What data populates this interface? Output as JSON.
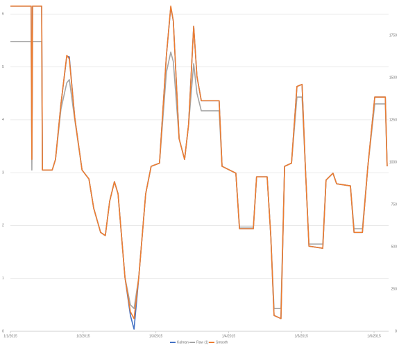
{
  "chart_data": {
    "type": "line",
    "x": [
      0,
      5.7,
      5.9,
      6.1,
      8.6,
      8.8,
      11.5,
      12.4,
      13.9,
      15.5,
      16.2,
      17.7,
      19.7,
      21.6,
      22.9,
      24.8,
      26.1,
      27.3,
      28.6,
      29.6,
      31.5,
      33.0,
      34.0,
      35.3,
      37.2,
      38.7,
      41.0,
      42.9,
      44.1,
      44.8,
      46.4,
      47.9,
      49.0,
      50.4,
      51.3,
      52.5,
      57.4,
      58.2,
      62.0,
      63.0,
      66.8,
      67.7,
      70.6,
      71.6,
      72.5,
      74.4,
      75.4,
      77.3,
      78.8,
      80.2,
      81.1,
      82.1,
      85.9,
      86.8,
      88.7,
      89.7,
      93.5,
      94.5,
      96.8,
      98.3,
      100.2,
      103.1,
      103.6
    ],
    "series": [
      {
        "name": "Kalman",
        "color": "#4472c4",
        "values": [
          6.15,
          6.15,
          3.25,
          6.15,
          6.15,
          3.05,
          3.05,
          3.25,
          4.3,
          5.2,
          5.19,
          4.04,
          3.05,
          2.88,
          2.33,
          1.87,
          1.81,
          2.46,
          2.83,
          2.6,
          1.02,
          0.3,
          0.04,
          1.02,
          2.6,
          3.12,
          3.18,
          5.22,
          6.13,
          5.87,
          3.64,
          3.25,
          3.91,
          5.77,
          4.82,
          4.36,
          4.36,
          3.12,
          2.99,
          1.94,
          1.94,
          2.92,
          2.92,
          1.81,
          0.3,
          0.24,
          3.12,
          3.18,
          4.63,
          4.67,
          3.12,
          1.61,
          1.57,
          2.86,
          2.99,
          2.79,
          2.75,
          1.87,
          1.87,
          3.12,
          4.43,
          4.43,
          3.12
        ]
      },
      {
        "name": "Raw (1)",
        "color": "#a5a5a5",
        "values": [
          5.48,
          5.48,
          3.05,
          5.48,
          5.48,
          3.05,
          3.05,
          3.25,
          4.2,
          4.7,
          4.76,
          4.0,
          3.05,
          2.88,
          2.33,
          1.87,
          1.81,
          2.46,
          2.83,
          2.6,
          1.02,
          0.5,
          0.43,
          1.02,
          2.6,
          3.12,
          3.18,
          4.9,
          5.28,
          5.1,
          3.64,
          3.25,
          3.91,
          5.06,
          4.5,
          4.17,
          4.17,
          3.12,
          2.99,
          1.97,
          1.97,
          2.92,
          2.92,
          1.81,
          0.43,
          0.43,
          3.12,
          3.18,
          4.43,
          4.43,
          3.12,
          1.65,
          1.65,
          2.86,
          2.99,
          2.79,
          2.75,
          1.94,
          1.94,
          3.12,
          4.3,
          4.3,
          3.12
        ]
      },
      {
        "name": "Smooth",
        "color": "#ed7d31",
        "values": [
          6.15,
          6.15,
          3.25,
          6.15,
          6.15,
          3.05,
          3.05,
          3.25,
          4.3,
          5.22,
          5.15,
          4.04,
          3.05,
          2.88,
          2.33,
          1.87,
          1.81,
          2.46,
          2.83,
          2.6,
          1.02,
          0.37,
          0.24,
          1.02,
          2.6,
          3.12,
          3.18,
          5.22,
          6.15,
          5.87,
          3.64,
          3.25,
          3.91,
          5.77,
          4.82,
          4.36,
          4.36,
          3.12,
          2.99,
          1.94,
          1.94,
          2.92,
          2.92,
          1.81,
          0.3,
          0.24,
          3.12,
          3.18,
          4.63,
          4.67,
          3.12,
          1.61,
          1.57,
          2.86,
          2.99,
          2.79,
          2.75,
          1.87,
          1.87,
          3.12,
          4.43,
          4.43,
          3.12
        ]
      }
    ],
    "xlim": [
      0,
      104
    ],
    "xticks": [
      {
        "value": 0,
        "label": "1/1/2015"
      },
      {
        "value": 20,
        "label": "1/2/2015"
      },
      {
        "value": 40,
        "label": "1/3/2015"
      },
      {
        "value": 60,
        "label": "1/4/2015"
      },
      {
        "value": 80,
        "label": "1/5/2015"
      },
      {
        "value": 100,
        "label": "1/6/2015"
      }
    ],
    "ylim": [
      0,
      6.2
    ],
    "yticks": [
      0,
      1,
      2,
      3,
      4,
      5,
      6
    ],
    "y2lim": [
      0,
      1938.5
    ],
    "y2ticks": [
      0,
      250,
      500,
      750,
      1000,
      1250,
      1500,
      1750
    ],
    "grid": true,
    "legend": "bottom"
  }
}
